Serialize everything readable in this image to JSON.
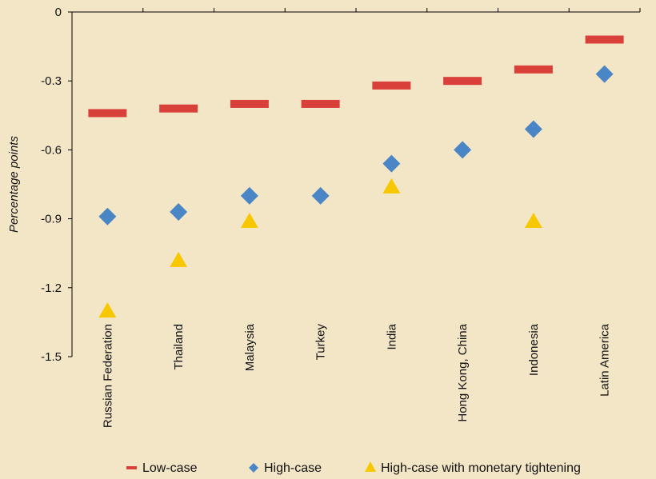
{
  "chart_data": {
    "type": "scatter",
    "title": "",
    "xlabel": "",
    "ylabel": "Percentage points",
    "ylim": [
      -1.5,
      0
    ],
    "yticks": [
      "0",
      "-0.3",
      "-0.6",
      "-0.9",
      "-1.2",
      "-1.5"
    ],
    "ytick_values": [
      0,
      -0.3,
      -0.6,
      -0.9,
      -1.2,
      -1.5
    ],
    "grid": false,
    "legend_position": "bottom",
    "categories": [
      "Russian Federation",
      "Thailand",
      "Malaysia",
      "Turkey",
      "India",
      "Hong Kong, China",
      "Indonesia",
      "Latin America"
    ],
    "series": [
      {
        "name": "Low-case",
        "marker": "dash",
        "color": "#d9403a",
        "values": [
          -0.44,
          -0.42,
          -0.4,
          -0.4,
          -0.32,
          -0.3,
          -0.25,
          -0.12
        ]
      },
      {
        "name": "High-case",
        "marker": "diamond",
        "color": "#4a86c5",
        "values": [
          -0.89,
          -0.87,
          -0.8,
          -0.8,
          -0.66,
          -0.6,
          -0.51,
          -0.27
        ]
      },
      {
        "name": "High-case with monetary tightening",
        "marker": "triangle",
        "color": "#f7c800",
        "values": [
          -1.3,
          -1.08,
          -0.91,
          null,
          -0.76,
          null,
          -0.91,
          null
        ]
      }
    ]
  }
}
